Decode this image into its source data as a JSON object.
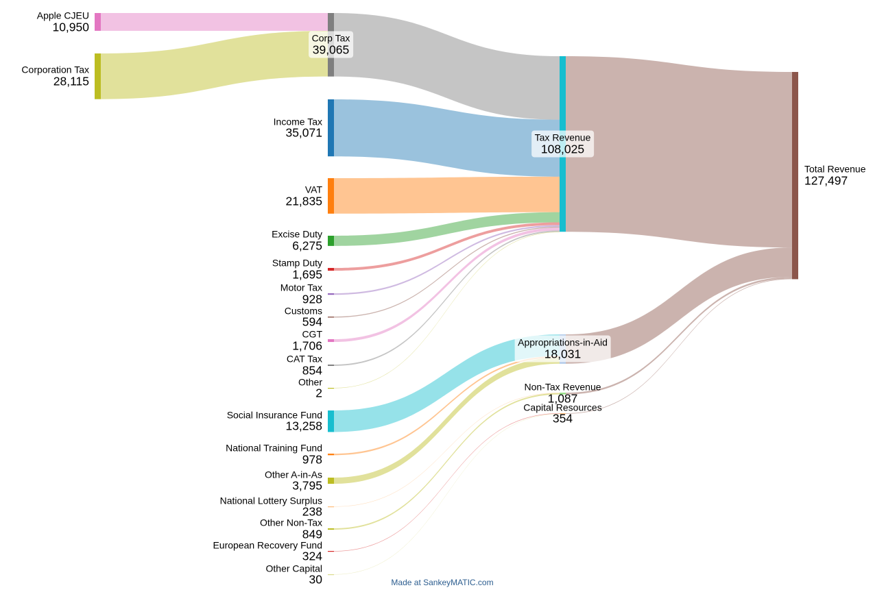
{
  "chart_data": {
    "type": "sankey",
    "nodes": [
      {
        "id": "Apple CJEU",
        "value": "10,950",
        "color": "#e377c2"
      },
      {
        "id": "Corporation Tax",
        "value": "28,115",
        "color": "#bcbd22"
      },
      {
        "id": "Corp Tax",
        "value": "39,065",
        "color": "#7f7f7f"
      },
      {
        "id": "Income Tax",
        "value": "35,071",
        "color": "#1f77b4"
      },
      {
        "id": "VAT",
        "value": "21,835",
        "color": "#ff7f0e"
      },
      {
        "id": "Excise Duty",
        "value": "6,275",
        "color": "#2ca02c"
      },
      {
        "id": "Stamp Duty",
        "value": "1,695",
        "color": "#d62728"
      },
      {
        "id": "Motor Tax",
        "value": "928",
        "color": "#9467bd"
      },
      {
        "id": "Customs",
        "value": "594",
        "color": "#8c564b"
      },
      {
        "id": "CGT",
        "value": "1,706",
        "color": "#e377c2"
      },
      {
        "id": "CAT Tax",
        "value": "854",
        "color": "#7f7f7f"
      },
      {
        "id": "Other",
        "value": "2",
        "color": "#bcbd22"
      },
      {
        "id": "Social Insurance Fund",
        "value": "13,258",
        "color": "#17becf"
      },
      {
        "id": "National Training Fund",
        "value": "978",
        "color": "#ff7f0e"
      },
      {
        "id": "Other A-in-As",
        "value": "3,795",
        "color": "#bcbd22"
      },
      {
        "id": "National Lottery Surplus",
        "value": "238",
        "color": "#ffbb78"
      },
      {
        "id": "Other Non-Tax",
        "value": "849",
        "color": "#bcbd22"
      },
      {
        "id": "European Recovery Fund",
        "value": "324",
        "color": "#d62728"
      },
      {
        "id": "Other Capital",
        "value": "30",
        "color": "#dbdb8d"
      },
      {
        "id": "Tax Revenue",
        "value": "108,025",
        "color": "#17becf"
      },
      {
        "id": "Appropriations-in-Aid",
        "value": "18,031",
        "color": "#aec7e8"
      },
      {
        "id": "Non-Tax Revenue",
        "value": "1,087",
        "color": "#98df8a"
      },
      {
        "id": "Capital Resources",
        "value": "354",
        "color": "#ffbb78"
      },
      {
        "id": "Total Revenue",
        "value": "127,497",
        "color": "#8c564b"
      }
    ],
    "links": [
      {
        "source": "Apple CJEU",
        "target": "Corp Tax",
        "value": 10950
      },
      {
        "source": "Corporation Tax",
        "target": "Corp Tax",
        "value": 28115
      },
      {
        "source": "Corp Tax",
        "target": "Tax Revenue",
        "value": 39065
      },
      {
        "source": "Income Tax",
        "target": "Tax Revenue",
        "value": 35071
      },
      {
        "source": "VAT",
        "target": "Tax Revenue",
        "value": 21835
      },
      {
        "source": "Excise Duty",
        "target": "Tax Revenue",
        "value": 6275
      },
      {
        "source": "Stamp Duty",
        "target": "Tax Revenue",
        "value": 1695
      },
      {
        "source": "Motor Tax",
        "target": "Tax Revenue",
        "value": 928
      },
      {
        "source": "Customs",
        "target": "Tax Revenue",
        "value": 594
      },
      {
        "source": "CGT",
        "target": "Tax Revenue",
        "value": 1706
      },
      {
        "source": "CAT Tax",
        "target": "Tax Revenue",
        "value": 854
      },
      {
        "source": "Other",
        "target": "Tax Revenue",
        "value": 2
      },
      {
        "source": "Social Insurance Fund",
        "target": "Appropriations-in-Aid",
        "value": 13258
      },
      {
        "source": "National Training Fund",
        "target": "Appropriations-in-Aid",
        "value": 978
      },
      {
        "source": "Other A-in-As",
        "target": "Appropriations-in-Aid",
        "value": 3795
      },
      {
        "source": "National Lottery Surplus",
        "target": "Non-Tax Revenue",
        "value": 238
      },
      {
        "source": "Other Non-Tax",
        "target": "Non-Tax Revenue",
        "value": 849
      },
      {
        "source": "European Recovery Fund",
        "target": "Capital Resources",
        "value": 324
      },
      {
        "source": "Other Capital",
        "target": "Capital Resources",
        "value": 30
      },
      {
        "source": "Tax Revenue",
        "target": "Total Revenue",
        "value": 108025,
        "color": "#8c564b"
      },
      {
        "source": "Appropriations-in-Aid",
        "target": "Total Revenue",
        "value": 18031,
        "color": "#8c564b"
      },
      {
        "source": "Non-Tax Revenue",
        "target": "Total Revenue",
        "value": 1087,
        "color": "#8c564b"
      },
      {
        "source": "Capital Resources",
        "target": "Total Revenue",
        "value": 354,
        "color": "#8c564b"
      }
    ]
  },
  "footer": "Made at SankeyMATIC.com"
}
